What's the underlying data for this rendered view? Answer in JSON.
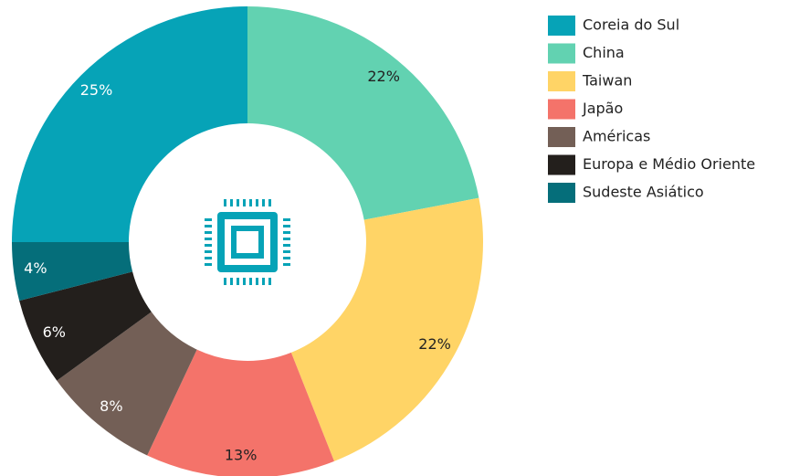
{
  "chart_data": {
    "type": "donut",
    "categories": [
      "Coreia do Sul",
      "China",
      "Taiwan",
      "Japão",
      "Américas",
      "Europa e Médio Oriente",
      "Sudeste Asiático"
    ],
    "values": [
      25,
      22,
      22,
      13,
      8,
      6,
      4
    ],
    "value_labels": [
      "25%",
      "22%",
      "22%",
      "13%",
      "8%",
      "6%",
      "4%"
    ],
    "colors": [
      "#06a3b7",
      "#62d2b1",
      "#ffd466",
      "#f4736a",
      "#735f56",
      "#231f1c",
      "#056e7a"
    ],
    "legend": "right"
  }
}
